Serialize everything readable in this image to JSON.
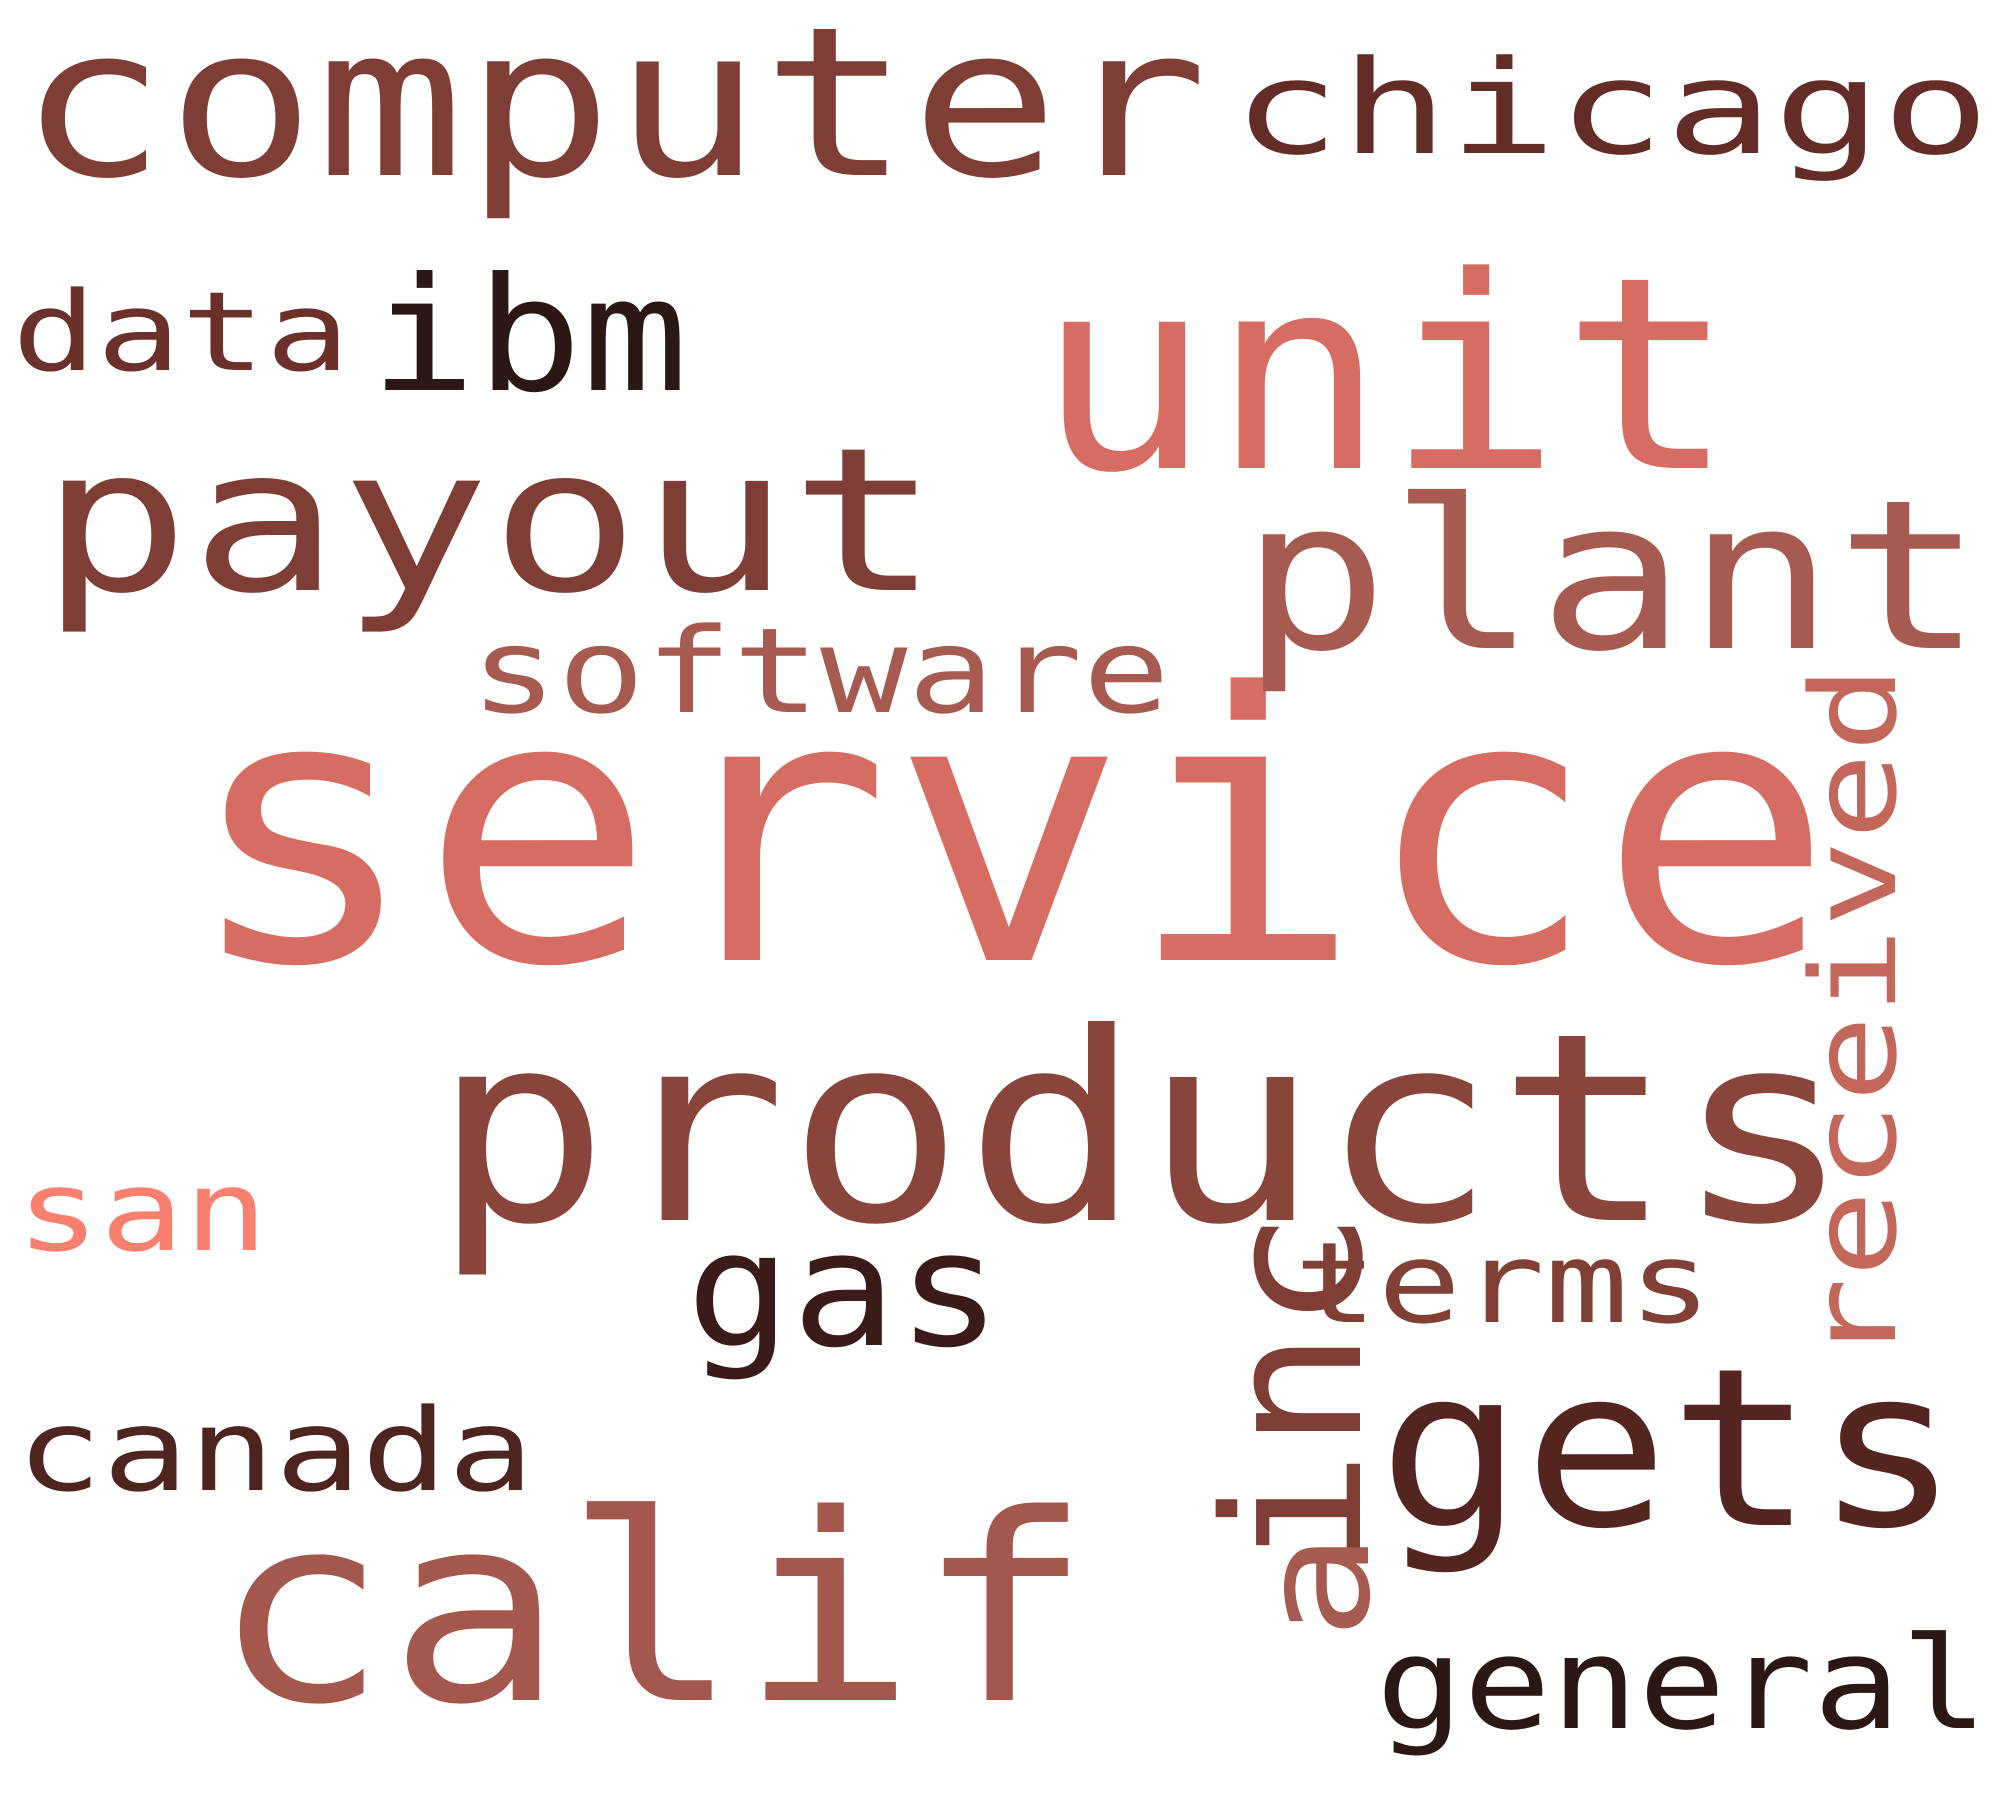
{
  "words": [
    {
      "text": "service",
      "color": "#d76d62"
    },
    {
      "text": "products",
      "color": "#89443b"
    },
    {
      "text": "computer",
      "color": "#7e3d35"
    },
    {
      "text": "unit",
      "color": "#d76d62"
    },
    {
      "text": "payout",
      "color": "#7e3d35"
    },
    {
      "text": "calif",
      "color": "#a3574d"
    },
    {
      "text": "gets",
      "color": "#542520"
    },
    {
      "text": "plant",
      "color": "#a65a50"
    },
    {
      "text": "chicago",
      "color": "#632c26"
    },
    {
      "text": "ibm",
      "color": "#2b1713"
    },
    {
      "text": "software",
      "color": "#a65a50"
    },
    {
      "text": "data",
      "color": "#6b3029"
    },
    {
      "text": "received",
      "color": "#c3675b"
    },
    {
      "text": "inc",
      "color": "#7e3d35"
    },
    {
      "text": "gas",
      "color": "#3a1b17"
    },
    {
      "text": "terms",
      "color": "#804036"
    },
    {
      "text": "san",
      "color": "#f97f6f"
    },
    {
      "text": "canada",
      "color": "#4e241f"
    },
    {
      "text": "general",
      "color": "#2b1713"
    },
    {
      "text": "a",
      "color": "#a65a50"
    }
  ]
}
